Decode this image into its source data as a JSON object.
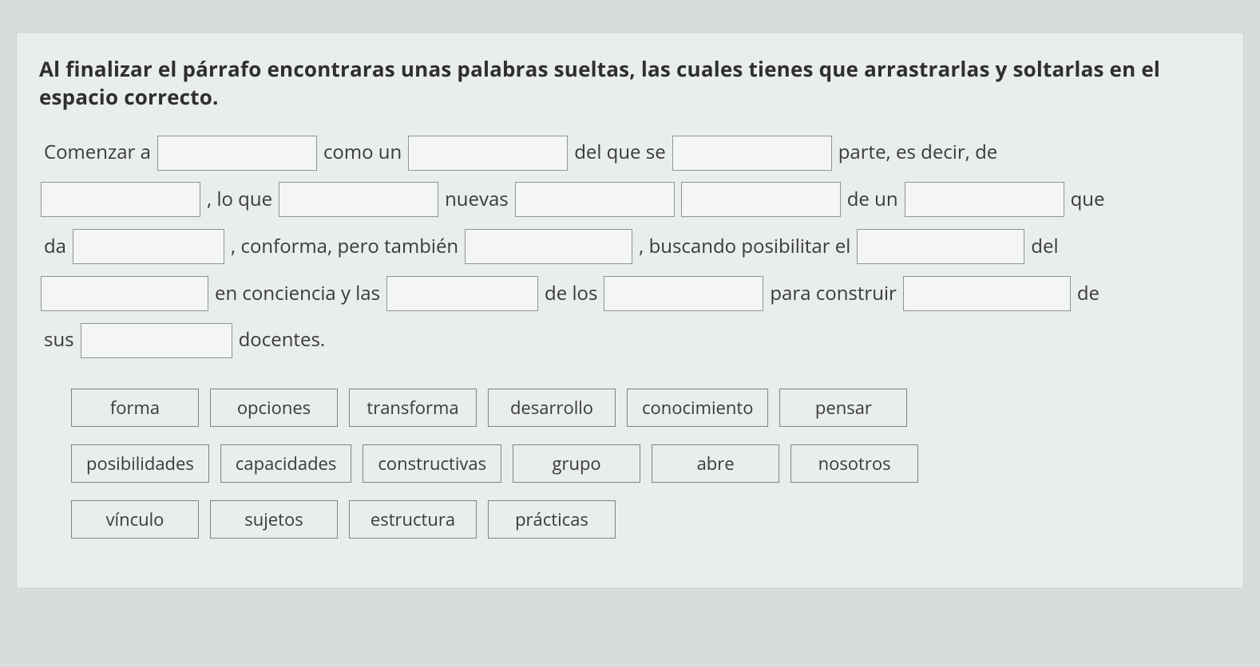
{
  "colors": {
    "page_bg": "#d8dcdc",
    "card_bg": "#e9edec",
    "card_border": "#cfd3d2",
    "text": "#3a3a3a",
    "blank_border": "#8f9594",
    "blank_bg": "#f3f6f5",
    "word_border": "#7e8584"
  },
  "typography": {
    "instruction_fontsize": 26,
    "instruction_weight": 700,
    "body_fontsize": 24,
    "word_fontsize": 22
  },
  "instruction": "Al finalizar el párrafo encontraras unas palabras sueltas, las cuales tienes que arrastrarlas y soltarlas en el espacio correcto.",
  "paragraph": {
    "row1": {
      "t1": "Comenzar a",
      "b1_w": 200,
      "t2": "como un",
      "b2_w": 200,
      "t3": "del que se",
      "b3_w": 200,
      "t4": "parte, es decir, de"
    },
    "row2": {
      "b1_w": 200,
      "t1": ", lo que",
      "b2_w": 200,
      "t2": "nuevas",
      "b3_w": 200,
      "b4_w": 200,
      "t3": "de un",
      "b5_w": 200,
      "t4": "que"
    },
    "row3": {
      "t1": "da",
      "b1_w": 190,
      "t2": ", conforma, pero también",
      "b2_w": 210,
      "t3": ", buscando posibilitar el",
      "b3_w": 210,
      "t4": "del"
    },
    "row4": {
      "b1_w": 210,
      "t1": "en conciencia y las",
      "b2_w": 190,
      "t2": "de los",
      "b3_w": 200,
      "t3": "para construir",
      "b4_w": 210,
      "t4": "de"
    },
    "row5": {
      "t1": "sus",
      "b1_w": 190,
      "t2": "docentes."
    }
  },
  "wordbank": {
    "row1": [
      "forma",
      "opciones",
      "transforma",
      "desarrollo",
      "conocimiento",
      "pensar"
    ],
    "row2": [
      "posibilidades",
      "capacidades",
      "constructivas",
      "grupo",
      "abre",
      "nosotros"
    ],
    "row3": [
      "vínculo",
      "sujetos",
      "estructura",
      "prácticas"
    ]
  }
}
